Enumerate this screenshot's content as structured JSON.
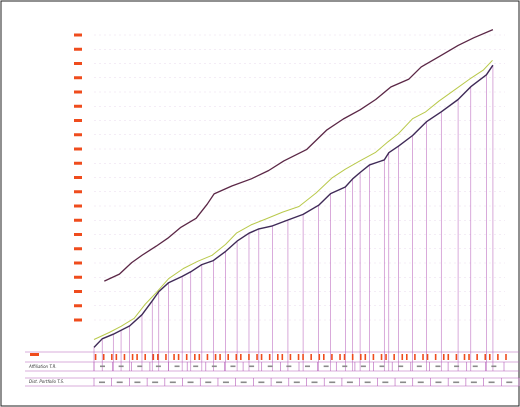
{
  "colors": {
    "upper_series": "#5b2746",
    "lower_series": "#3f2a57",
    "middle_series": "#b9c94b",
    "drop_lines": "#b45ab8",
    "tick_marks": "#ef4c1d",
    "frame": "#222222"
  },
  "chart_data": {
    "type": "line",
    "title": "",
    "xlabel": "",
    "ylabel": "",
    "grid": true,
    "xlim": [
      0,
      100
    ],
    "ylim": [
      0,
      100
    ],
    "y_tick_count": 21,
    "series": [
      {
        "key": "upper",
        "x": [
          2.5,
          6.2,
          9.2,
          11.8,
          15.2,
          18.0,
          21.2,
          24.9,
          27.6,
          29.3,
          33.6,
          38.4,
          42.6,
          46.3,
          51.9,
          56.8,
          60.8,
          64.9,
          68.7,
          72.4,
          76.8,
          79.8,
          84.3,
          88.8,
          92.6,
          97.3
        ],
        "y": [
          21.5,
          23.6,
          27.1,
          29.4,
          32.1,
          34.5,
          37.8,
          40.5,
          44.8,
          47.9,
          50.3,
          52.5,
          55.0,
          57.9,
          61.4,
          67.3,
          70.6,
          73.4,
          76.5,
          80.3,
          82.7,
          86.4,
          89.6,
          92.9,
          95.2,
          97.7
        ]
      },
      {
        "key": "middle",
        "x": [
          0.0,
          3.7,
          6.6,
          9.8,
          12.5,
          14.9,
          18.2,
          21.8,
          25.3,
          28.8,
          32.1,
          34.8,
          38.3,
          41.9,
          46.0,
          50.0,
          54.2,
          58.0,
          61.3,
          65.0,
          68.7,
          71.7,
          74.2,
          77.7,
          80.8,
          84.1,
          87.8,
          91.6,
          95.0,
          97.2
        ],
        "y": [
          3.8,
          5.9,
          7.8,
          10.2,
          14.5,
          17.6,
          22.2,
          25.3,
          27.5,
          29.3,
          32.6,
          36.1,
          38.5,
          40.3,
          42.4,
          44.1,
          48.2,
          52.7,
          55.4,
          58.0,
          60.5,
          63.7,
          66.1,
          70.7,
          72.7,
          76.0,
          79.3,
          82.7,
          85.5,
          88.4
        ]
      },
      {
        "key": "lower",
        "x": [
          0.0,
          2.0,
          4.7,
          8.7,
          11.7,
          14.2,
          15.8,
          18.2,
          21.5,
          23.6,
          26.3,
          29.1,
          32.1,
          34.9,
          37.8,
          40.2,
          43.5,
          47.3,
          51.0,
          54.8,
          57.7,
          61.3,
          63.1,
          64.9,
          67.2,
          70.8,
          71.9,
          74.3,
          77.7,
          81.1,
          84.7,
          88.8,
          91.9,
          95.7,
          97.3
        ],
        "y": [
          1.4,
          4.0,
          5.4,
          7.9,
          11.3,
          15.5,
          18.3,
          21.0,
          22.9,
          24.3,
          26.5,
          27.7,
          30.5,
          33.6,
          36.0,
          37.3,
          38.2,
          40.0,
          41.7,
          44.5,
          48.0,
          50.0,
          52.5,
          54.4,
          56.7,
          58.2,
          60.4,
          62.4,
          65.6,
          69.8,
          72.8,
          76.5,
          80.4,
          84.0,
          86.9
        ]
      }
    ],
    "drop_lines_x": [
      0.0,
      2.0,
      4.7,
      6.6,
      8.7,
      11.7,
      14.2,
      15.8,
      18.2,
      21.5,
      23.6,
      26.3,
      29.1,
      32.1,
      34.9,
      37.8,
      40.2,
      43.5,
      47.3,
      51.0,
      54.8,
      57.7,
      61.3,
      63.1,
      64.9,
      67.2,
      70.8,
      71.9,
      74.3,
      77.7,
      81.1,
      84.7,
      88.8,
      91.9,
      95.7,
      97.3
    ],
    "strip_top_tick_count": 60,
    "strip_mid_segments": 22,
    "strip_bottom_segments": 24
  },
  "bottom_strip": {
    "row1_label": "Affiliation T.R.",
    "row2_label": "Dist. Portfolio T.S."
  }
}
